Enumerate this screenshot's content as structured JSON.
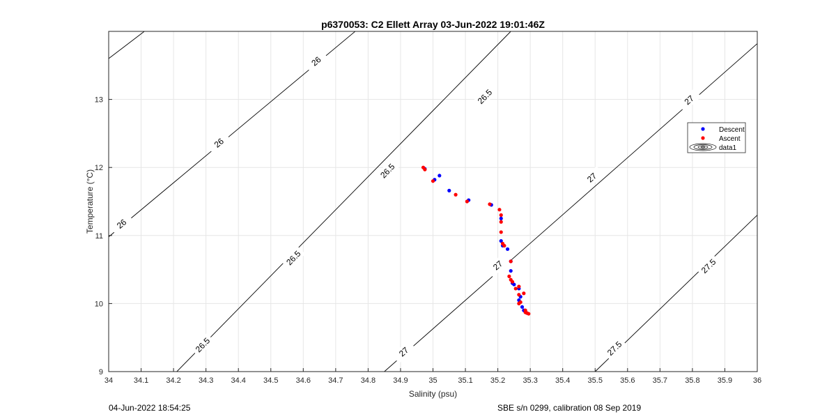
{
  "chart_data": {
    "type": "scatter",
    "title": "p6370053: C2 Ellett Array 03-Jun-2022 19:01:46Z",
    "xlabel": "Salinity (psu)",
    "ylabel": "Temperature (°C)",
    "xlim": [
      34,
      36
    ],
    "ylim": [
      9,
      14
    ],
    "xticks": [
      "34",
      "34.1",
      "34.2",
      "34.3",
      "34.4",
      "34.5",
      "34.6",
      "34.7",
      "34.8",
      "34.9",
      "35",
      "35.1",
      "35.2",
      "35.3",
      "35.4",
      "35.5",
      "35.6",
      "35.7",
      "35.8",
      "35.9",
      "36"
    ],
    "yticks": [
      "9",
      "10",
      "11",
      "12",
      "13"
    ],
    "grid": true,
    "legend_position": "right",
    "legend": [
      "Descent",
      "Ascent",
      "data1"
    ],
    "colors": {
      "Descent": "#0000ff",
      "Ascent": "#ff0000",
      "contour": "#000000"
    },
    "contours": [
      {
        "label": "26",
        "points": [
          [
            34.0,
            13.6
          ],
          [
            34.11,
            14.0
          ]
        ],
        "label_positions": []
      },
      {
        "label": "26",
        "points": [
          [
            34.0,
            10.98
          ],
          [
            34.76,
            14.0
          ]
        ],
        "label_positions": [
          [
            34.04,
            11.17
          ],
          [
            34.34,
            12.36
          ],
          [
            34.64,
            13.56
          ]
        ]
      },
      {
        "label": "26.5",
        "points": [
          [
            34.21,
            9.0
          ],
          [
            35.24,
            14.0
          ]
        ],
        "label_positions": [
          [
            34.29,
            9.39
          ],
          [
            34.57,
            10.67
          ],
          [
            34.86,
            11.95
          ],
          [
            35.16,
            13.04
          ]
        ]
      },
      {
        "label": "27",
        "points": [
          [
            34.85,
            9.0
          ],
          [
            36.0,
            13.82
          ]
        ],
        "label_positions": [
          [
            34.91,
            9.29
          ],
          [
            35.2,
            10.56
          ],
          [
            35.49,
            11.85
          ],
          [
            35.79,
            12.99
          ]
        ]
      },
      {
        "label": "27.5",
        "points": [
          [
            35.5,
            9.0
          ],
          [
            36.0,
            11.3
          ]
        ],
        "label_positions": [
          [
            35.56,
            9.34
          ],
          [
            35.85,
            10.55
          ]
        ]
      }
    ],
    "series": [
      {
        "name": "Descent",
        "points": [
          [
            34.975,
            11.98
          ],
          [
            35.005,
            11.82
          ],
          [
            35.02,
            11.88
          ],
          [
            35.05,
            11.66
          ],
          [
            35.11,
            11.52
          ],
          [
            35.18,
            11.45
          ],
          [
            35.21,
            11.25
          ],
          [
            35.21,
            10.92
          ],
          [
            35.215,
            10.85
          ],
          [
            35.23,
            10.8
          ],
          [
            35.24,
            10.62
          ],
          [
            35.24,
            10.48
          ],
          [
            35.245,
            10.3
          ],
          [
            35.25,
            10.28
          ],
          [
            35.265,
            10.22
          ],
          [
            35.27,
            10.1
          ],
          [
            35.265,
            10.05
          ],
          [
            35.275,
            9.95
          ],
          [
            35.28,
            9.9
          ],
          [
            35.285,
            9.88
          ],
          [
            35.29,
            9.86
          ]
        ]
      },
      {
        "name": "Ascent",
        "points": [
          [
            34.97,
            12.0
          ],
          [
            34.975,
            11.97
          ],
          [
            35.0,
            11.8
          ],
          [
            35.07,
            11.6
          ],
          [
            35.105,
            11.5
          ],
          [
            35.175,
            11.46
          ],
          [
            35.205,
            11.38
          ],
          [
            35.21,
            11.3
          ],
          [
            35.21,
            11.2
          ],
          [
            35.21,
            11.05
          ],
          [
            35.215,
            10.88
          ],
          [
            35.22,
            10.85
          ],
          [
            35.24,
            10.62
          ],
          [
            35.235,
            10.4
          ],
          [
            35.24,
            10.35
          ],
          [
            35.245,
            10.32
          ],
          [
            35.255,
            10.22
          ],
          [
            35.265,
            10.25
          ],
          [
            35.265,
            10.13
          ],
          [
            35.265,
            10.0
          ],
          [
            35.27,
            10.02
          ],
          [
            35.28,
            10.15
          ],
          [
            35.285,
            9.9
          ],
          [
            35.285,
            9.87
          ],
          [
            35.29,
            9.86
          ],
          [
            35.295,
            9.85
          ]
        ]
      }
    ]
  },
  "footer": {
    "left": "04-Jun-2022 18:54:25",
    "right": "SBE s/n 0299, calibration 08 Sep 2019"
  }
}
